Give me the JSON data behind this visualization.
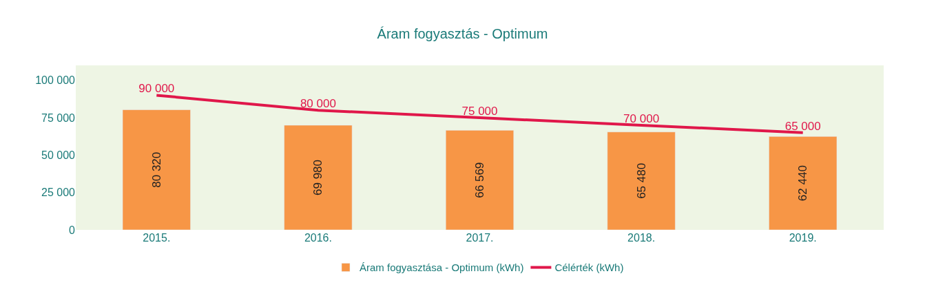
{
  "chart_data": {
    "type": "bar",
    "title": "Áram fogyasztás - Optimum",
    "categories": [
      "2015.",
      "2016.",
      "2017.",
      "2018.",
      "2019."
    ],
    "series": [
      {
        "name": "Áram fogyasztása - Optimum (kWh)",
        "color": "#f79646",
        "values": [
          80320,
          69980,
          66569,
          65480,
          62440
        ],
        "value_labels": [
          "80 320",
          "69 980",
          "66 569",
          "65 480",
          "62 440"
        ]
      },
      {
        "name": "Célérték (kWh)",
        "type": "line",
        "color": "#e0174a",
        "values": [
          90000,
          80000,
          75000,
          70000,
          65000
        ],
        "value_labels": [
          "90 000",
          "80 000",
          "75 000",
          "70 000",
          "65 000"
        ]
      }
    ],
    "ylim": [
      0,
      110000
    ],
    "yticks": [
      {
        "value": 0,
        "label": "0"
      },
      {
        "value": 25000,
        "label": "25 000"
      },
      {
        "value": 50000,
        "label": "50 000"
      },
      {
        "value": 75000,
        "label": "75 000"
      },
      {
        "value": 100000,
        "label": "100 000"
      }
    ],
    "grid": false,
    "legend": "bottom",
    "marker": "none"
  }
}
